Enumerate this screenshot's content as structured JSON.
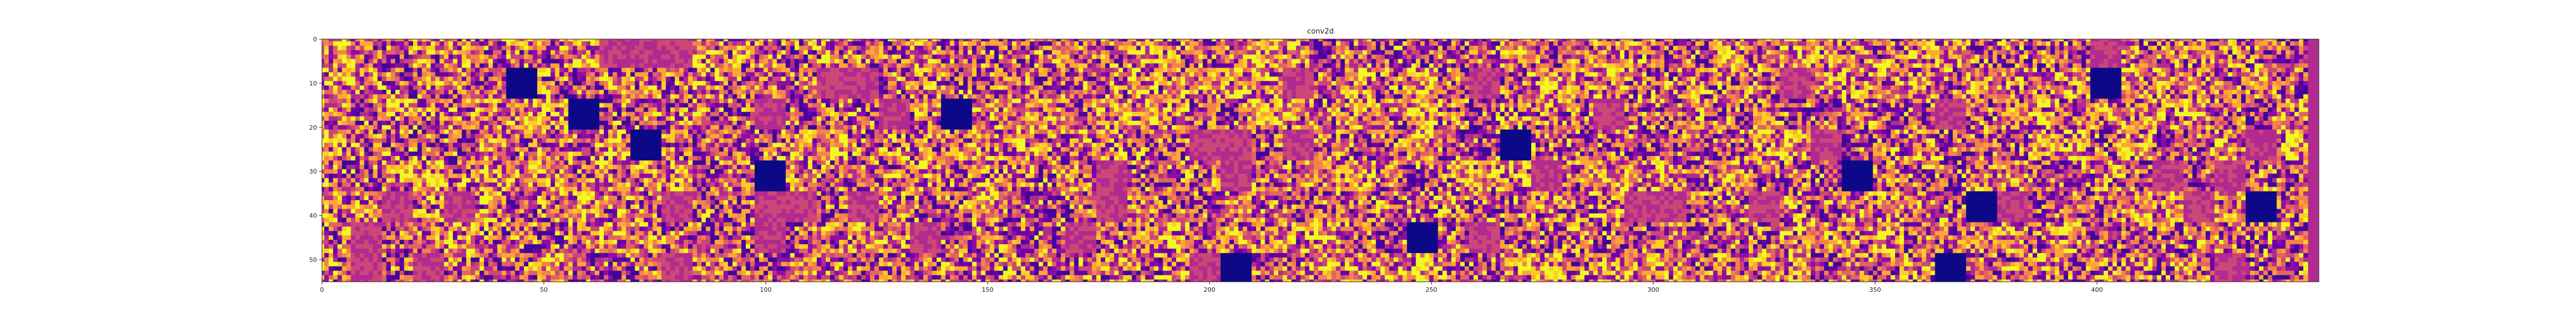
{
  "chart_data": {
    "type": "heatmap",
    "title": "conv2d",
    "xlabel": "",
    "ylabel": "",
    "colormap": "plasma",
    "xlim": [
      0,
      450
    ],
    "ylim": [
      0,
      55
    ],
    "grid": false,
    "x_ticks": [
      0,
      50,
      100,
      150,
      200,
      250,
      300,
      350,
      400
    ],
    "y_ticks": [
      0,
      10,
      20,
      30,
      40,
      50
    ],
    "x_tick_labels": [
      "0",
      "50",
      "100",
      "150",
      "200",
      "250",
      "300",
      "350",
      "400"
    ],
    "y_tick_labels": [
      "0",
      "10",
      "20",
      "30",
      "40",
      "50"
    ],
    "tile_grid": {
      "rows": 8,
      "cols": 64,
      "tile_size": 7
    },
    "dead_tiles": [
      {
        "row": 1,
        "col": 6
      },
      {
        "row": 2,
        "col": 8
      },
      {
        "row": 2,
        "col": 20
      },
      {
        "row": 3,
        "col": 10
      },
      {
        "row": 4,
        "col": 14
      },
      {
        "row": 3,
        "col": 38
      },
      {
        "row": 4,
        "col": 49
      },
      {
        "row": 5,
        "col": 53
      },
      {
        "row": 6,
        "col": 35
      },
      {
        "row": 7,
        "col": 29
      },
      {
        "row": 7,
        "col": 52
      },
      {
        "row": 1,
        "col": 57
      },
      {
        "row": 5,
        "col": 62
      }
    ],
    "colors": {
      "dead": "#0d0887",
      "low": "#6a00a8",
      "mid_low": "#b12a90",
      "mid_high": "#e16462",
      "high": "#fca636",
      "peak": "#f0f921"
    }
  }
}
